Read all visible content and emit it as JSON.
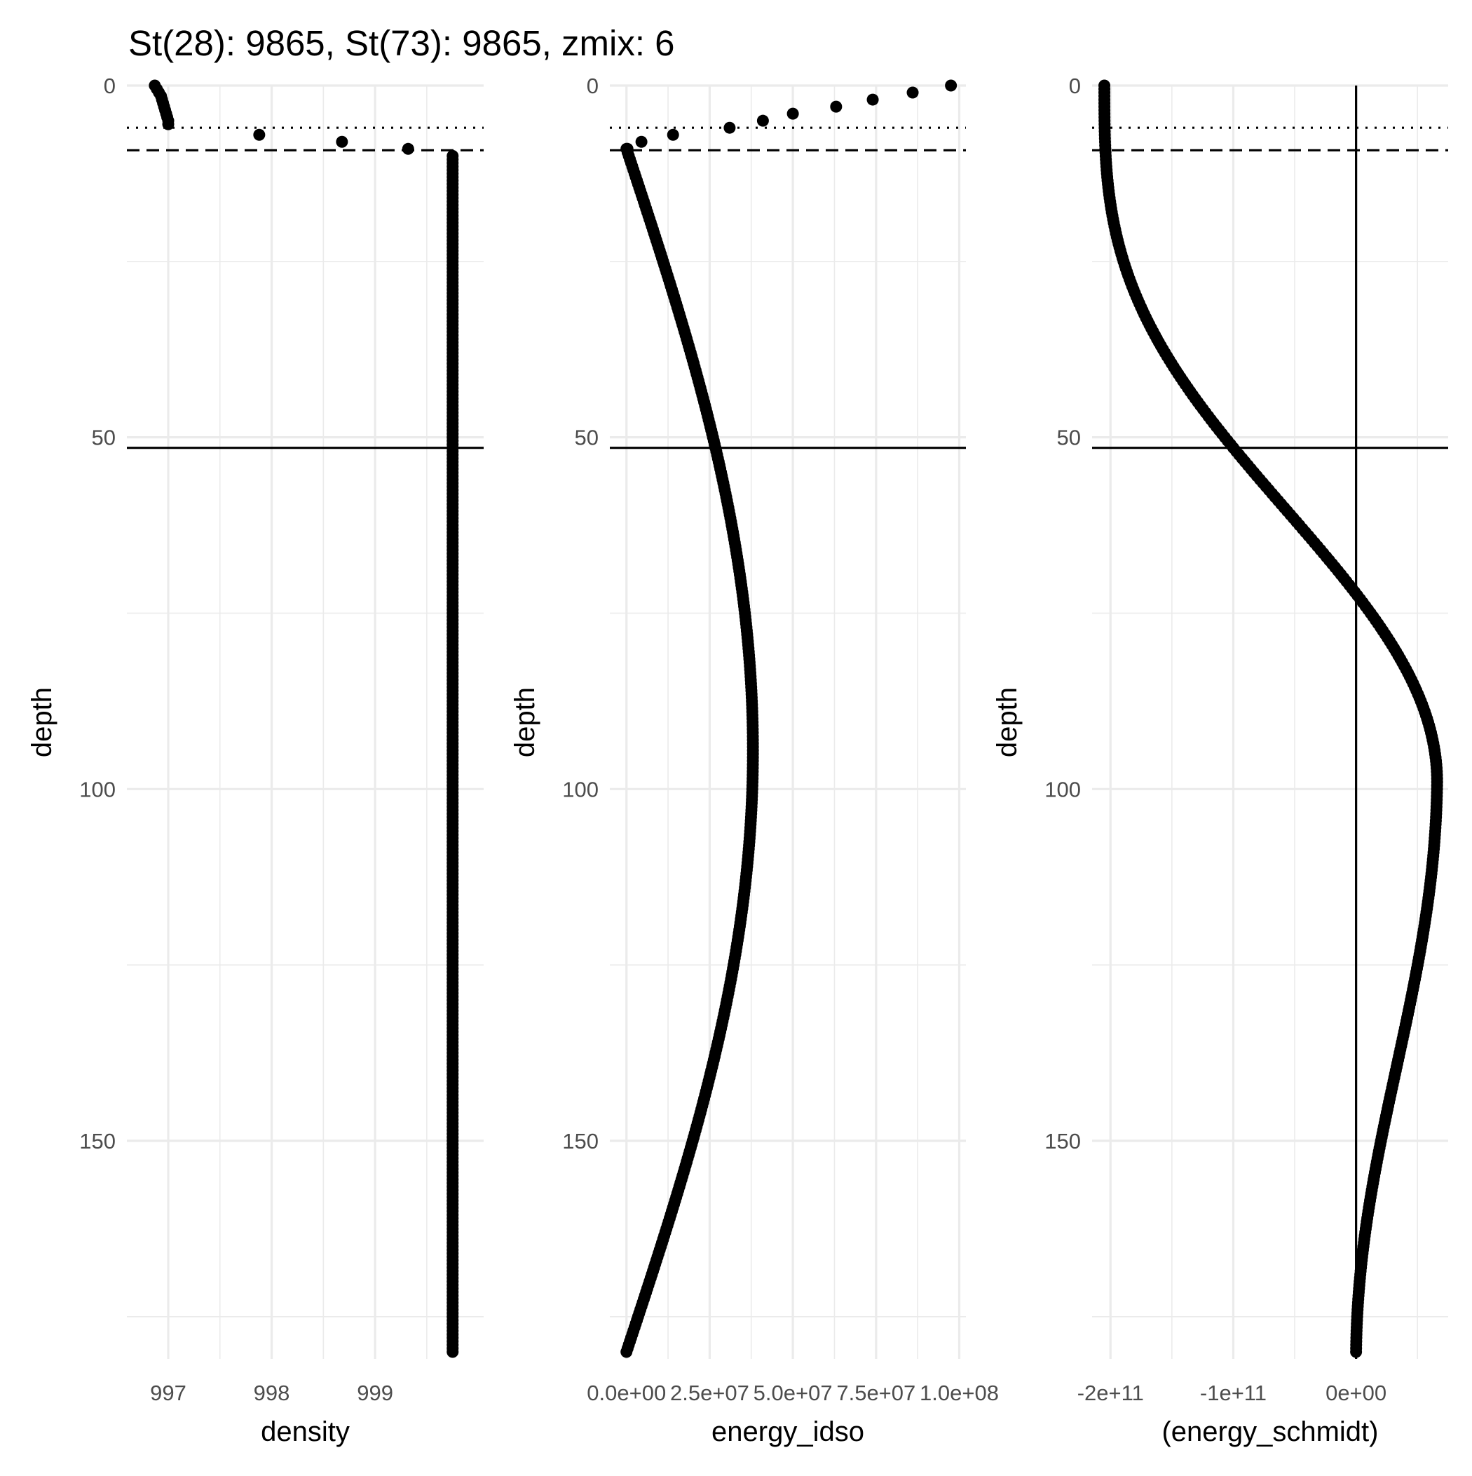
{
  "title": "St(28): 9865, St(73): 9865, zmix: 6",
  "colors": {
    "points": "#000000",
    "grid": "#ebebeb",
    "tick_text": "#4d4d4d",
    "axis_text": "#000000",
    "reference": "#000000"
  },
  "chart_data": [
    {
      "type": "scatter",
      "xlabel": "density",
      "ylabel": "depth",
      "y_reversed": true,
      "ylim": [
        0,
        181
      ],
      "xlim": [
        996.6,
        1000.05
      ],
      "x_ticks": [
        997,
        998,
        999
      ],
      "x_tick_labels": [
        "997",
        "998",
        "999"
      ],
      "x_minor_ticks": [
        997.5,
        998.5,
        999.5
      ],
      "y_ticks": [
        0,
        50,
        100,
        150
      ],
      "y_tick_labels": [
        "0",
        "50",
        "100",
        "150"
      ],
      "y_minor_ticks": [
        25,
        75,
        125,
        175
      ],
      "vlines": [],
      "hlines": [
        {
          "y": 6,
          "style": "dotted"
        },
        {
          "y": 9.2,
          "style": "dashed"
        },
        {
          "y": 51.5,
          "style": "solid"
        }
      ],
      "points": [
        [
          996.87,
          0
        ],
        [
          996.89,
          0.5
        ],
        [
          996.91,
          1
        ],
        [
          996.93,
          1.5
        ],
        [
          996.94,
          2
        ],
        [
          996.95,
          2.5
        ],
        [
          996.96,
          3
        ],
        [
          996.97,
          3.5
        ],
        [
          996.98,
          4
        ],
        [
          996.99,
          4.5
        ],
        [
          997.0,
          5
        ],
        [
          997.0,
          5.5
        ],
        [
          997.88,
          7
        ],
        [
          998.68,
          8
        ],
        [
          999.32,
          9
        ]
      ],
      "series": [
        {
          "name": "",
          "profile": "constant",
          "x": 999.75,
          "y_from": 10,
          "y_to": 180
        }
      ]
    },
    {
      "type": "scatter",
      "xlabel": "energy_idso",
      "ylabel": "depth",
      "y_reversed": true,
      "ylim": [
        0,
        181
      ],
      "xlim": [
        -5000000.0,
        102000000.0
      ],
      "x_ticks": [
        0,
        25000000.0,
        50000000.0,
        75000000.0,
        100000000.0
      ],
      "x_tick_labels": [
        "0.0e+00",
        "2.5e+07",
        "5.0e+07",
        "7.5e+07",
        "1.0e+08"
      ],
      "x_minor_ticks": [
        12500000.0,
        37500000.0,
        62500000.0,
        87500000.0
      ],
      "y_ticks": [
        0,
        50,
        100,
        150
      ],
      "y_tick_labels": [
        "0",
        "50",
        "100",
        "150"
      ],
      "y_minor_ticks": [
        25,
        75,
        125,
        175
      ],
      "vlines": [],
      "hlines": [
        {
          "y": 6,
          "style": "dotted"
        },
        {
          "y": 9.2,
          "style": "dashed"
        },
        {
          "y": 51.5,
          "style": "solid"
        }
      ],
      "points": [
        [
          97500000.0,
          0
        ],
        [
          86000000.0,
          1
        ],
        [
          74000000.0,
          2
        ],
        [
          63000000.0,
          3
        ],
        [
          50000000.0,
          4
        ],
        [
          41000000.0,
          5
        ],
        [
          31000000.0,
          6
        ],
        [
          14000000.0,
          7
        ],
        [
          4500000.0,
          8
        ],
        [
          300000.0,
          9
        ]
      ],
      "series": [
        {
          "name": "",
          "profile": "sine",
          "peak_x": 38000000.0,
          "y_from": 9,
          "y_to": 180
        }
      ]
    },
    {
      "type": "scatter",
      "xlabel": "(energy_schmidt)",
      "ylabel": "depth",
      "y_reversed": true,
      "ylim": [
        0,
        181
      ],
      "xlim": [
        -215000000000.0,
        75000000000.0
      ],
      "x_ticks": [
        -200000000000.0,
        -100000000000.0,
        0
      ],
      "x_tick_labels": [
        "-2e+11",
        "-1e+11",
        "0e+00"
      ],
      "x_minor_ticks": [
        -150000000000.0,
        -50000000000.0,
        50000000000.0
      ],
      "y_ticks": [
        0,
        50,
        100,
        150
      ],
      "y_tick_labels": [
        "0",
        "50",
        "100",
        "150"
      ],
      "y_minor_ticks": [
        25,
        75,
        125,
        175
      ],
      "vlines": [
        {
          "x": 0,
          "style": "solid"
        }
      ],
      "hlines": [
        {
          "y": 6,
          "style": "dotted"
        },
        {
          "y": 9.2,
          "style": "dashed"
        },
        {
          "y": 51.5,
          "style": "solid"
        }
      ],
      "points": [],
      "series": [
        {
          "name": "",
          "profile": "cumulative",
          "start_x": -205000000000.0,
          "peak_x": 66000000000.0,
          "y_from": 0,
          "y_to": 180
        }
      ]
    }
  ]
}
